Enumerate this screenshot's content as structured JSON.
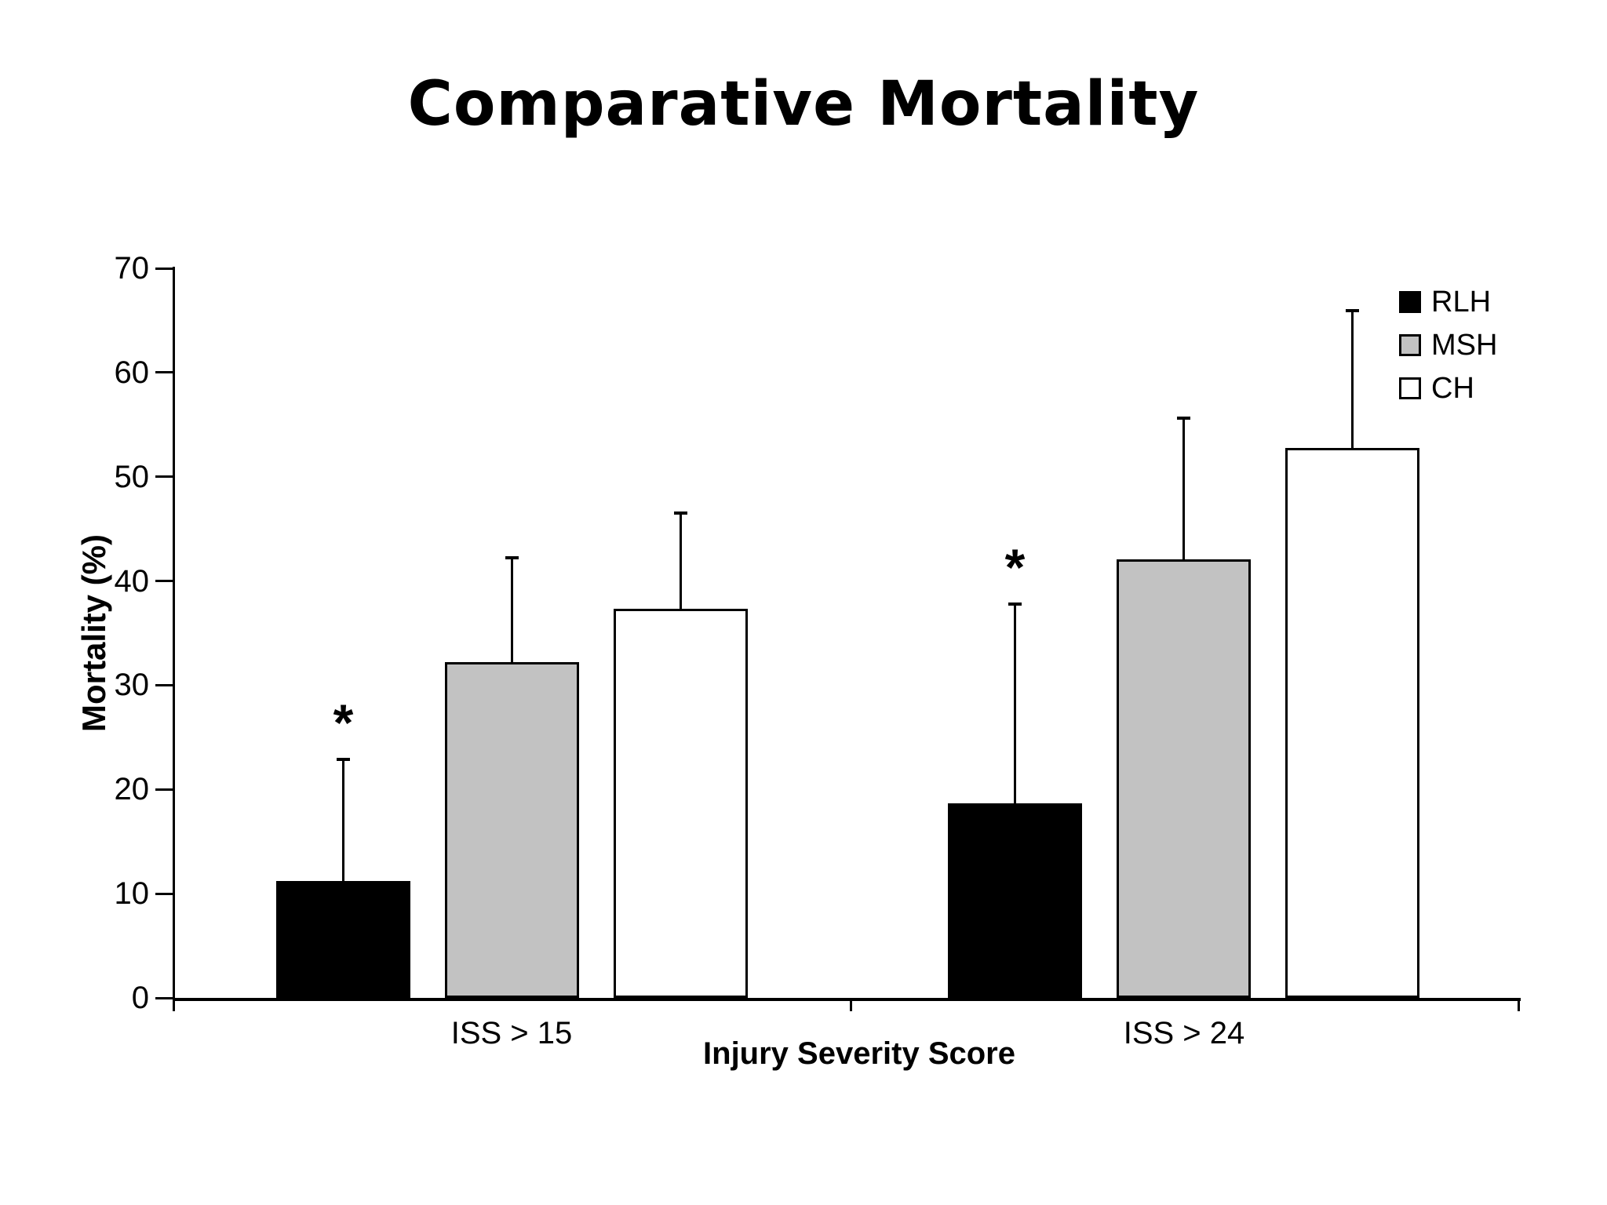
{
  "title": "Comparative Mortality",
  "chart_data": {
    "type": "bar",
    "title": "Comparative Mortality",
    "xlabel": "Injury Severity Score",
    "ylabel": "Mortality (%)",
    "ylim": [
      0,
      70
    ],
    "yticks": [
      0,
      10,
      20,
      30,
      40,
      50,
      60,
      70
    ],
    "categories": [
      "ISS > 15",
      "ISS > 24"
    ],
    "series": [
      {
        "name": "RLH",
        "fill": "#000000",
        "values": [
          11.2,
          18.7
        ],
        "error_top": [
          23.0,
          37.9
        ]
      },
      {
        "name": "MSH",
        "fill": "#c2c2c2",
        "values": [
          32.2,
          42.1
        ],
        "error_top": [
          42.4,
          55.8
        ]
      },
      {
        "name": "CH",
        "fill": "#ffffff",
        "values": [
          37.3,
          52.8
        ],
        "error_top": [
          46.7,
          66.1
        ]
      }
    ],
    "annotations": [
      {
        "text": "*",
        "series": "RLH",
        "category": "ISS > 15"
      },
      {
        "text": "*",
        "series": "RLH",
        "category": "ISS > 24"
      }
    ],
    "legend_position": "top-right",
    "grid": false
  },
  "axes": {
    "y_label": "Mortality (%)",
    "x_label": "Injury Severity Score",
    "x_categories": [
      "ISS > 15",
      "ISS > 24"
    ]
  },
  "legend": {
    "items": [
      {
        "label": "RLH",
        "color": "#000000"
      },
      {
        "label": "MSH",
        "color": "#c2c2c2"
      },
      {
        "label": "CH",
        "color": "#ffffff"
      }
    ]
  },
  "colors": {
    "axis": "#000000",
    "background": "#ffffff"
  }
}
